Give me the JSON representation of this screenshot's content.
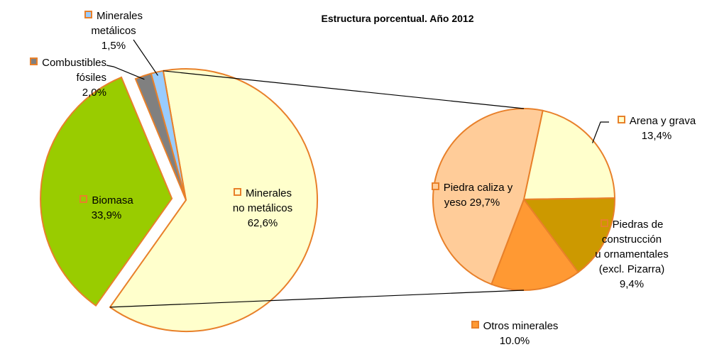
{
  "chart_data": [
    {
      "type": "pie",
      "title": "Estructura porcentual. Año 2012",
      "categories": [
        "Minerales\nno metálicos",
        "Biomasa",
        "Combustibles\nfósiles",
        "Minerales\nmetálicos"
      ],
      "values": [
        62.6,
        33.9,
        2.0,
        1.5
      ],
      "value_labels": [
        "62,6%",
        "33,9%",
        "2,0%",
        "1,5%"
      ],
      "colors": [
        "#ffffcc",
        "#99cc00",
        "#808080",
        "#99ccff"
      ]
    },
    {
      "type": "pie",
      "categories": [
        "Arena y grava",
        "Piedras de\nconstrucción\nu ornamentales\n(excl. Pizarra)",
        "Otros minerales",
        "Piedra caliza y\nyeso"
      ],
      "values": [
        13.4,
        9.4,
        10.0,
        29.7
      ],
      "value_labels": [
        "13,4%",
        "9,4%",
        "10.0%",
        "29,7%"
      ],
      "colors": [
        "#ffffcc",
        "#cc9900",
        "#ff9933",
        "#ffcc99"
      ]
    }
  ]
}
